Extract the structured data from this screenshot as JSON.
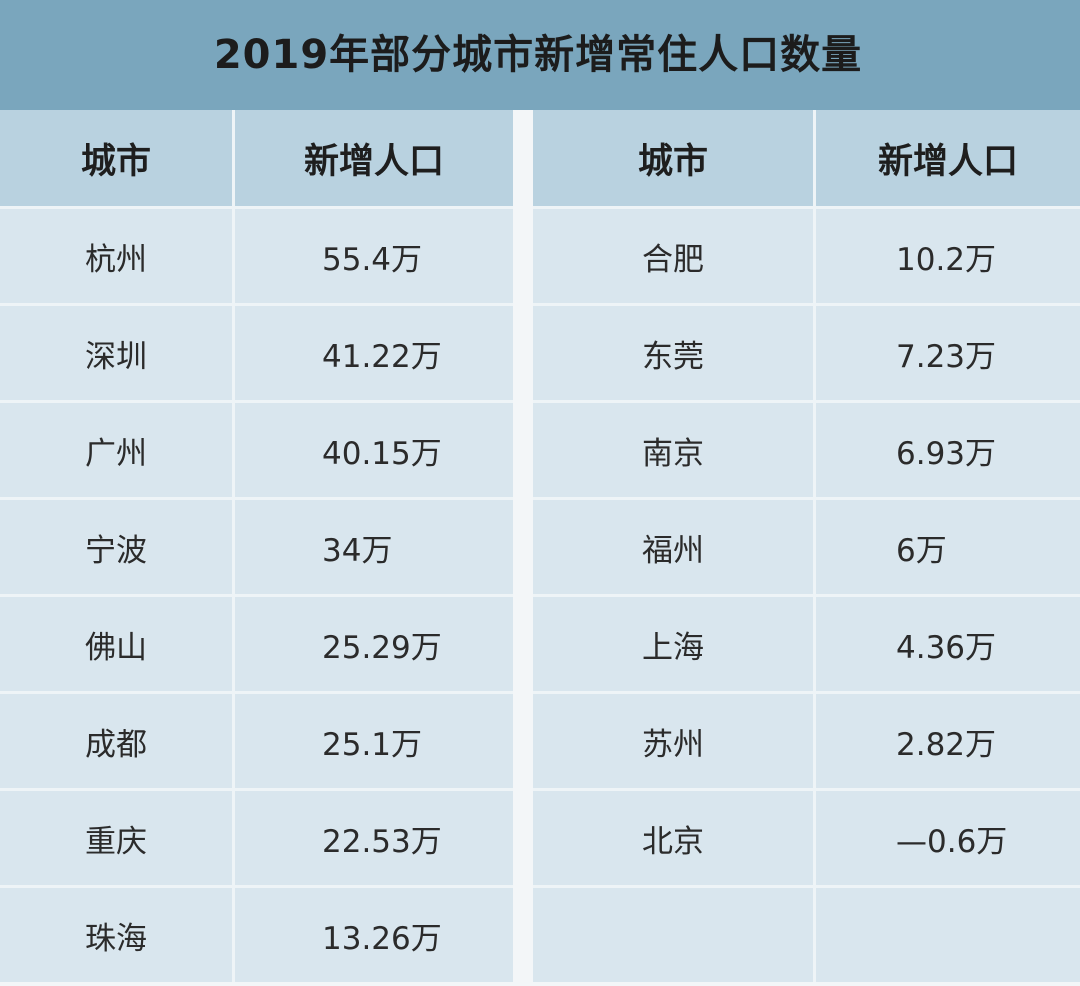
{
  "title": "2019年部分城市新增常住人口数量",
  "headers": {
    "city": "城市",
    "new_pop": "新增人口"
  },
  "left_rows": [
    {
      "city": "杭州",
      "value": "55.4万"
    },
    {
      "city": "深圳",
      "value": "41.22万"
    },
    {
      "city": "广州",
      "value": "40.15万"
    },
    {
      "city": "宁波",
      "value": "34万"
    },
    {
      "city": "佛山",
      "value": "25.29万"
    },
    {
      "city": "成都",
      "value": "25.1万"
    },
    {
      "city": "重庆",
      "value": "22.53万"
    },
    {
      "city": "珠海",
      "value": "13.26万"
    }
  ],
  "right_rows": [
    {
      "city": "合肥",
      "value": "10.2万"
    },
    {
      "city": "东莞",
      "value": "7.23万"
    },
    {
      "city": "南京",
      "value": "6.93万"
    },
    {
      "city": "福州",
      "value": "6万"
    },
    {
      "city": "上海",
      "value": "4.36万"
    },
    {
      "city": "苏州",
      "value": "2.82万"
    },
    {
      "city": "北京",
      "value": "—0.6万"
    }
  ]
}
